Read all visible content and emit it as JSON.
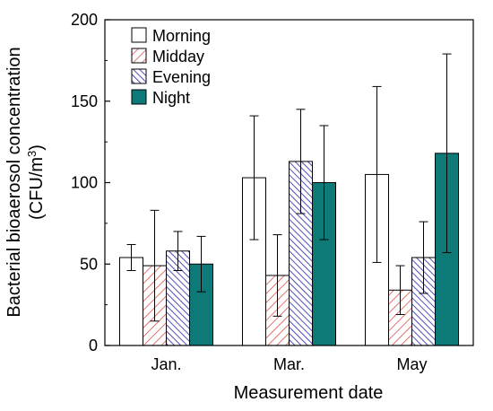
{
  "chart_data": {
    "type": "bar",
    "xlabel": "Measurement date",
    "ylabel_line1": "Bacterial bioaerosol concentration",
    "ylabel_unit_prefix": "(CFU/m",
    "ylabel_unit_sup": "3",
    "ylabel_unit_suffix": ")",
    "ylim": [
      0,
      200
    ],
    "yticks": [
      "0",
      "50",
      "100",
      "150",
      "200"
    ],
    "categories": [
      "Jan.",
      "Mar.",
      "May"
    ],
    "legend_position": "top-left",
    "series": [
      {
        "name": "Morning",
        "pattern": "solid",
        "fill": "#ffffff",
        "stroke": "#000000",
        "values": [
          54,
          103,
          105
        ],
        "err": [
          8,
          38,
          54
        ]
      },
      {
        "name": "Midday",
        "pattern": "hatch-red",
        "fill": "#d9534f",
        "stroke": "#000000",
        "values": [
          49,
          43,
          34
        ],
        "err": [
          34,
          25,
          15
        ]
      },
      {
        "name": "Evening",
        "pattern": "hatch-blue",
        "fill": "#3b3bb5",
        "stroke": "#000000",
        "values": [
          58,
          113,
          54
        ],
        "err": [
          12,
          32,
          22
        ]
      },
      {
        "name": "Night",
        "pattern": "solid",
        "fill": "#0e7a78",
        "stroke": "#000000",
        "values": [
          50,
          100,
          118
        ],
        "err": [
          17,
          35,
          61
        ]
      }
    ]
  }
}
